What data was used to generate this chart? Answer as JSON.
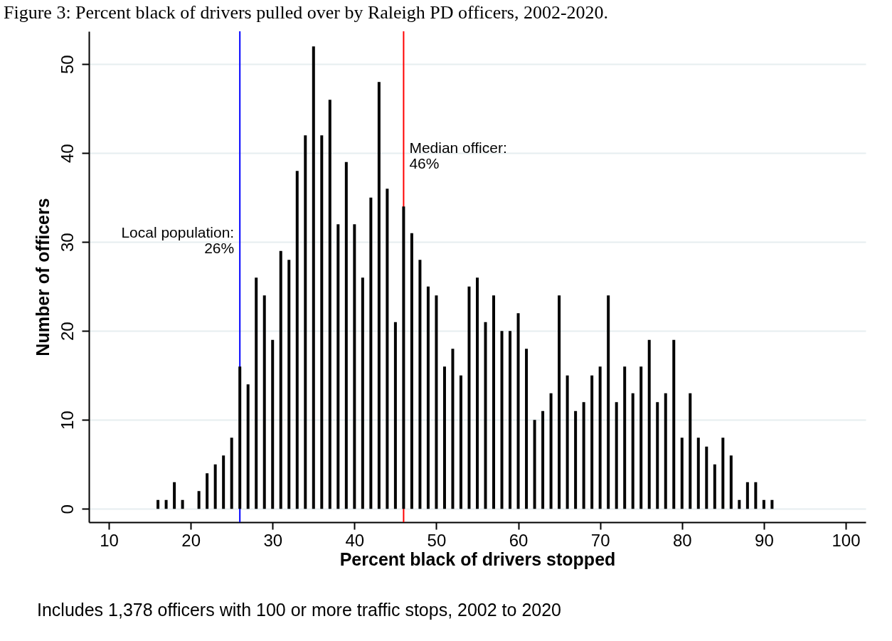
{
  "chart_data": {
    "type": "bar",
    "title": "Figure 3: Percent black of drivers pulled over by Raleigh PD officers, 2002-2020.",
    "xlabel": "Percent black of drivers stopped",
    "ylabel": "Number of officers",
    "x": [
      16,
      17,
      18,
      19,
      21,
      22,
      23,
      24,
      25,
      26,
      27,
      28,
      29,
      30,
      31,
      32,
      33,
      34,
      35,
      36,
      37,
      38,
      39,
      40,
      41,
      42,
      43,
      44,
      45,
      46,
      47,
      48,
      49,
      50,
      51,
      52,
      53,
      54,
      55,
      56,
      57,
      58,
      59,
      60,
      61,
      62,
      63,
      64,
      65,
      66,
      67,
      68,
      69,
      70,
      71,
      72,
      73,
      74,
      75,
      76,
      77,
      78,
      79,
      80,
      81,
      82,
      83,
      84,
      85,
      86,
      87,
      88,
      89,
      90,
      91
    ],
    "values": [
      1,
      1,
      3,
      1,
      2,
      4,
      5,
      6,
      8,
      16,
      14,
      26,
      24,
      19,
      29,
      28,
      38,
      42,
      52,
      42,
      46,
      32,
      39,
      32,
      26,
      35,
      48,
      36,
      21,
      34,
      31,
      28,
      25,
      24,
      16,
      18,
      15,
      25,
      26,
      21,
      24,
      20,
      20,
      22,
      18,
      10,
      11,
      13,
      24,
      15,
      11,
      12,
      15,
      16,
      24,
      12,
      16,
      13,
      16,
      19,
      12,
      13,
      19,
      8,
      13,
      8,
      7,
      5,
      8,
      6,
      1,
      3,
      3,
      1,
      1
    ],
    "color": "#000000",
    "xlim": [
      8,
      102
    ],
    "xticks": [
      10,
      20,
      30,
      40,
      50,
      60,
      70,
      80,
      90,
      100
    ],
    "ylim": [
      -1.5,
      53.7
    ],
    "yticks": [
      0,
      10,
      20,
      30,
      40,
      50
    ],
    "grid": "y",
    "ref_lines": [
      {
        "axis": "x",
        "value": 26,
        "label": "Local population:\n26%",
        "color": "#0000ff"
      },
      {
        "axis": "x",
        "value": 46,
        "label": "Median officer:\n46%",
        "color": "#ff0000"
      }
    ],
    "annotations": [
      "Includes 1,378 officers with 100 or more traffic stops, 2002 to 2020"
    ]
  }
}
